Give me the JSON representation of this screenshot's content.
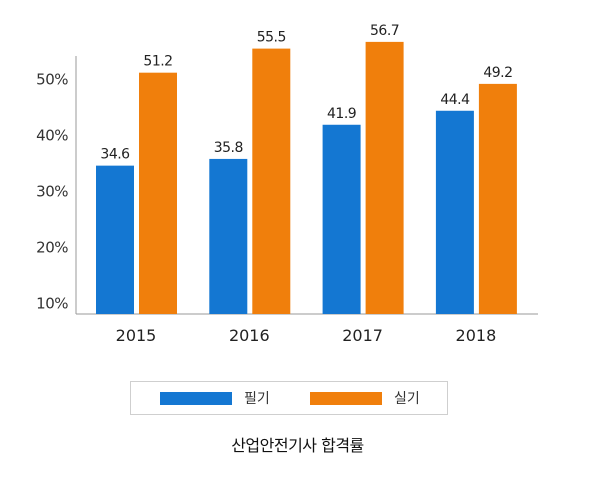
{
  "chart_data": {
    "type": "bar",
    "title": "산업안전기사 합격률",
    "categories": [
      "2015",
      "2016",
      "2017",
      "2018"
    ],
    "series": [
      {
        "name": "필기",
        "color": "#1477d2",
        "values": [
          34.6,
          35.8,
          41.9,
          44.4
        ],
        "labels": [
          "34.6",
          "35.8",
          "41.9",
          "44.4"
        ]
      },
      {
        "name": "실기",
        "color": "#f07f0c",
        "values": [
          51.2,
          55.5,
          56.7,
          49.2
        ],
        "labels": [
          "51.2",
          "55.5",
          "56.7",
          "49.2"
        ]
      }
    ],
    "yticks": [
      "10%",
      "20%",
      "30%",
      "40%",
      "50%"
    ],
    "ytick_values": [
      10,
      20,
      30,
      40,
      50
    ],
    "ylim": [
      8,
      58
    ],
    "grid": false,
    "legend_position": "bottom"
  }
}
